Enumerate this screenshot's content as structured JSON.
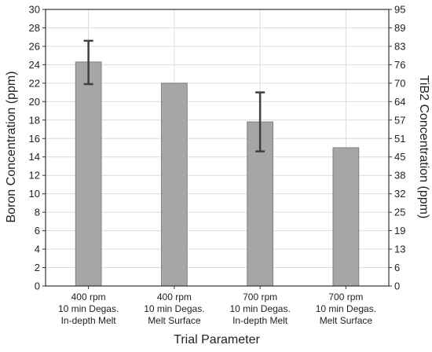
{
  "chart_data": {
    "type": "bar",
    "categories": [
      [
        "400 rpm",
        "10 min Degas.",
        "In-depth Melt"
      ],
      [
        "400 rpm",
        "10 min Degas.",
        "Melt Surface"
      ],
      [
        "700 rpm",
        "10 min Degas.",
        "In-depth Melt"
      ],
      [
        "700 rpm",
        "10 min Degas.",
        "Melt Surface"
      ]
    ],
    "values": [
      24.3,
      22.0,
      17.8,
      15.0
    ],
    "error_high": [
      26.6,
      null,
      21.0,
      null
    ],
    "error_low": [
      21.9,
      null,
      14.6,
      null
    ],
    "xlabel": "Trial Parameter",
    "ylabel": "Boron Concentration (ppm)",
    "ylim": [
      0,
      30
    ],
    "yticks": [
      "0",
      "2",
      "4",
      "6",
      "8",
      "10",
      "12",
      "14",
      "16",
      "18",
      "20",
      "22",
      "24",
      "26",
      "28",
      "30"
    ],
    "y2label": "TiB2 Concentration (ppm)",
    "y2ticks": [
      "0",
      "6",
      "13",
      "19",
      "25",
      "32",
      "38",
      "45",
      "51",
      "57",
      "64",
      "70",
      "76",
      "83",
      "89",
      "95"
    ],
    "grid": true,
    "colors": {
      "bar": "#a6a6a6",
      "bar_edge": "#808080",
      "error_bar": "#404040",
      "grid": "#dcdcdc",
      "axis": "#333333"
    }
  }
}
